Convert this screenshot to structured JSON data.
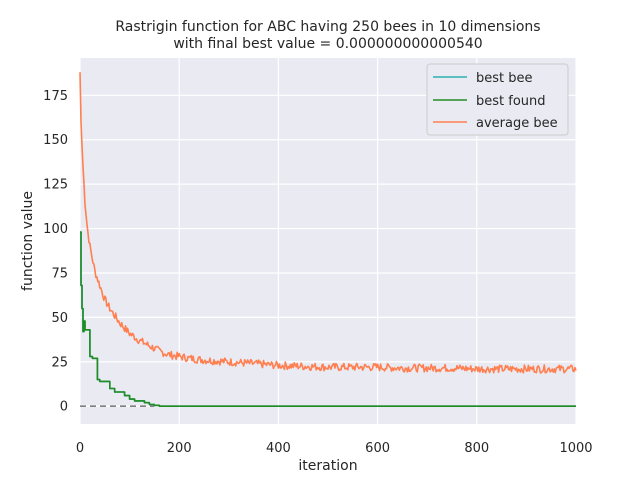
{
  "chart_data": {
    "type": "line",
    "title": "Rastrigin function for ABC having 250 bees in 10 dimensions",
    "subtitle": "with final best value = 0.000000000000540",
    "xlabel": "iteration",
    "ylabel": "function value",
    "xlim": [
      0,
      1000
    ],
    "ylim": [
      -10,
      196
    ],
    "xticks": [
      0,
      200,
      400,
      600,
      800,
      1000
    ],
    "yticks": [
      0,
      25,
      50,
      75,
      100,
      125,
      150,
      175
    ],
    "grid": true,
    "legend_position": "top-right",
    "reference_line": {
      "y": 0,
      "x_range": [
        0,
        150
      ],
      "style": "dashed",
      "color": "#808080"
    },
    "series": [
      {
        "name": "best bee",
        "color": "#2ab0b3",
        "x": [
          0,
          2,
          4,
          6,
          8,
          10,
          15,
          20,
          25,
          30,
          35,
          40,
          50,
          60,
          70,
          80,
          90,
          100,
          110,
          120,
          130,
          140,
          150,
          160,
          1000
        ],
        "y": [
          98,
          68,
          55,
          42,
          48,
          43,
          43,
          28,
          27,
          27,
          15,
          14,
          14,
          10,
          8,
          8,
          6,
          4,
          3,
          3,
          2,
          1,
          0.5,
          0,
          0
        ]
      },
      {
        "name": "best found",
        "color": "#228b22",
        "x": [
          0,
          2,
          4,
          6,
          8,
          10,
          15,
          20,
          25,
          30,
          35,
          40,
          50,
          60,
          70,
          80,
          90,
          100,
          110,
          120,
          130,
          140,
          150,
          160,
          1000
        ],
        "y": [
          98,
          68,
          55,
          42,
          48,
          43,
          43,
          28,
          27,
          27,
          15,
          14,
          14,
          10,
          8,
          8,
          6,
          4,
          3,
          3,
          2,
          1,
          0.5,
          0,
          0
        ]
      },
      {
        "name": "average bee",
        "color": "#ff7f50",
        "x": [
          0,
          2,
          5,
          8,
          10,
          15,
          20,
          30,
          40,
          50,
          60,
          70,
          80,
          90,
          100,
          120,
          140,
          160,
          180,
          200,
          220,
          250,
          300,
          350,
          400,
          450,
          500,
          550,
          600,
          650,
          700,
          750,
          800,
          850,
          900,
          950,
          1000
        ],
        "y": [
          188,
          160,
          140,
          125,
          115,
          100,
          90,
          76,
          68,
          60,
          55,
          51,
          47,
          44,
          41,
          37,
          34,
          31,
          29,
          28,
          27,
          26,
          25,
          24,
          23,
          22.5,
          22,
          22,
          22,
          21.5,
          21.5,
          21.5,
          21,
          21,
          21,
          21,
          21
        ],
        "noise": 2.2
      }
    ]
  }
}
